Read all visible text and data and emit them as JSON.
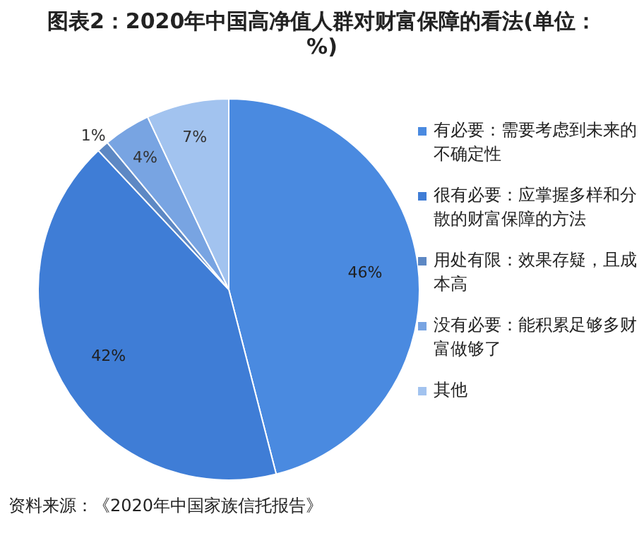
{
  "chart_data": {
    "type": "pie",
    "title": "图表2：2020年中国高净值人群对财富保障的看法(单位：%)",
    "categories": [
      "有必要：需要考虑到未来的不确定性",
      "很有必要：应掌握多样和分散的财富保障的方法",
      "用处有限：效果存疑，且成本高",
      "没有必要：能积累足够多财富做够了",
      "其他"
    ],
    "values": [
      46,
      42,
      1,
      4,
      7
    ],
    "value_labels": [
      "46%",
      "42%",
      "1%",
      "4%",
      "7%"
    ],
    "colors": [
      "#4a8ae0",
      "#3f7dd6",
      "#5d88c4",
      "#78a4e2",
      "#a2c3ef"
    ],
    "legend": "right",
    "annotations": [
      "资料来源：《2020年中国家族信托报告》"
    ]
  }
}
